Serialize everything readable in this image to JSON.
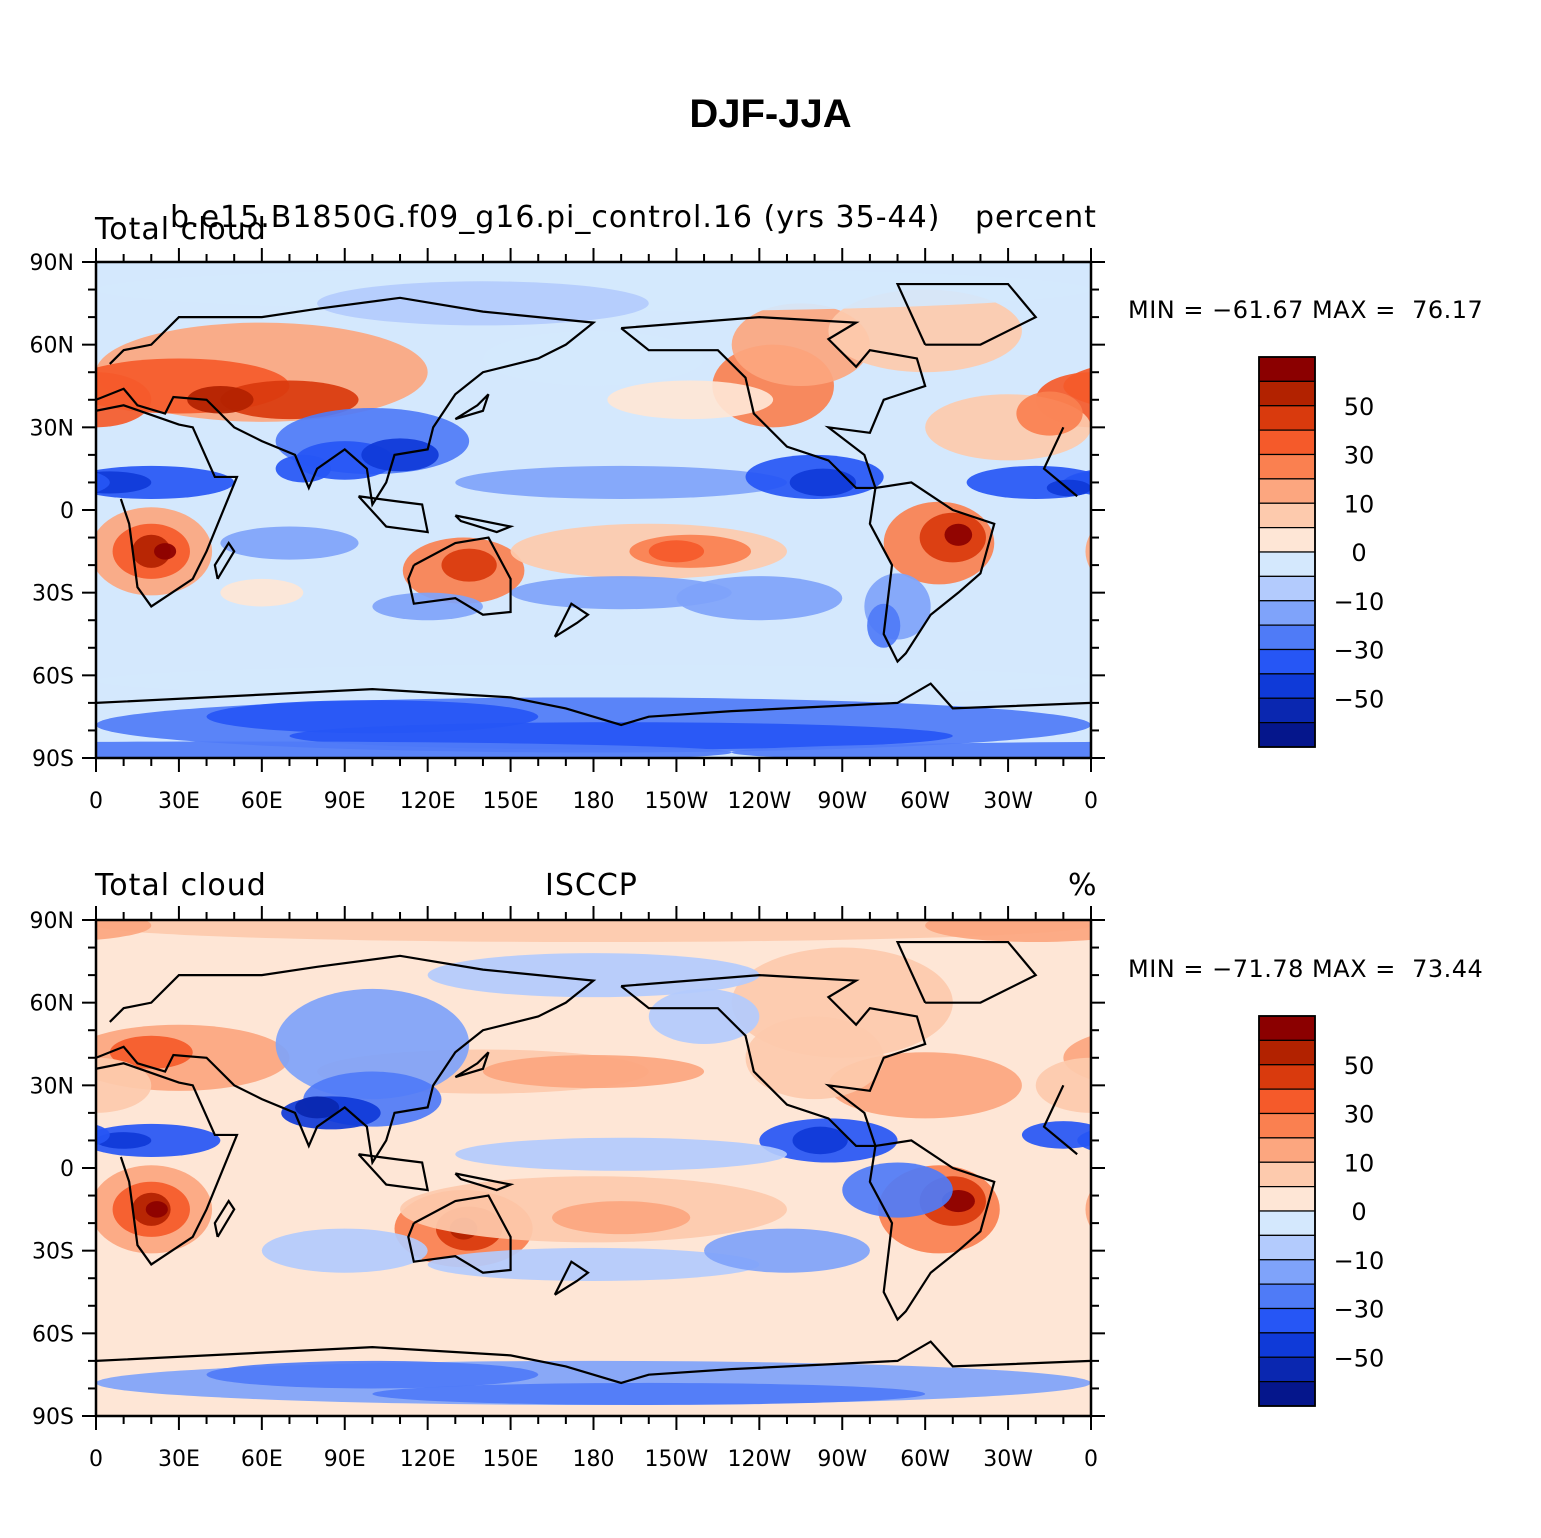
{
  "title": "DJF-JJA",
  "colors": {
    "levels": [
      "#8b0000",
      "#b22200",
      "#d93a0d",
      "#f55a2a",
      "#fa8050",
      "#fca67f",
      "#fdcaad",
      "#fee6d6",
      "#d4e8fd",
      "#b3cbfd",
      "#7fa3fa",
      "#4f7bf7",
      "#2656f5",
      "#0f3ad8",
      "#0a27b0",
      "#05168c"
    ],
    "ocean_neg_light": "#d4e8fd",
    "coast": "#000000"
  },
  "panels": [
    {
      "left_title": "Total cloud",
      "center_title": "b.e15.B1850G.f09_g16.pi_control.16 (yrs 35-44)",
      "right_title": "percent",
      "min_label": "MIN = −61.67 MAX =  76.17",
      "field_variant": "model"
    },
    {
      "left_title": "Total cloud",
      "center_title": "ISCCP",
      "right_title": "%",
      "min_label": "MIN = −71.78 MAX =  73.44",
      "field_variant": "obs"
    }
  ],
  "axes": {
    "lat_labels": [
      "90N",
      "60N",
      "30N",
      "0",
      "30S",
      "60S",
      "90S"
    ],
    "lon_labels": [
      "0",
      "30E",
      "60E",
      "90E",
      "120E",
      "150E",
      "180",
      "150W",
      "120W",
      "90W",
      "60W",
      "30W",
      "0"
    ]
  },
  "colorbar": {
    "labels": [
      "50",
      "30",
      "10",
      "0",
      "−10",
      "−30",
      "−50"
    ]
  }
}
